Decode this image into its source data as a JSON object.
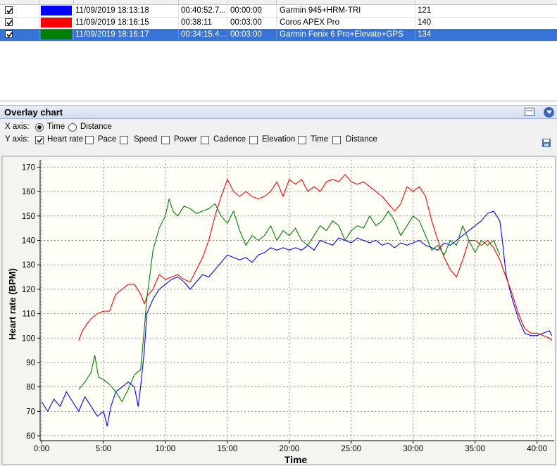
{
  "rows": [
    {
      "checked": true,
      "color": "#0000ff",
      "start": "11/09/2019 18:13:18",
      "duration": "00:40:52.7...",
      "offset": "00:00:00",
      "device": "Garmin 945+HRM-TRI",
      "value": "121",
      "selected": false
    },
    {
      "checked": true,
      "color": "#ff0000",
      "start": "11/09/2019 18:16:15",
      "duration": "00:38:11",
      "offset": "00:03:00",
      "device": "Coros APEX Pro",
      "value": "140",
      "selected": false
    },
    {
      "checked": true,
      "color": "#008000",
      "start": "11/09/2019 18:16:17",
      "duration": "00:34:15.4...",
      "offset": "00:03:00",
      "device": "Garmin Fenix 6 Pro+Elevate+GPS",
      "value": "134",
      "selected": true
    }
  ],
  "panel": {
    "title": "Overlay chart"
  },
  "options": {
    "x_axis_label": "X axis:",
    "x_options": [
      {
        "label": "Time",
        "selected": true
      },
      {
        "label": "Distance",
        "selected": false
      }
    ],
    "y_axis_label": "Y axis:",
    "y_options": [
      {
        "label": "Heart rate",
        "checked": true
      },
      {
        "label": "Pace",
        "checked": false
      },
      {
        "label": "Speed",
        "checked": false
      },
      {
        "label": "Power",
        "checked": false
      },
      {
        "label": "Cadence",
        "checked": false
      },
      {
        "label": "Elevation",
        "checked": false
      },
      {
        "label": "Time",
        "checked": false
      },
      {
        "label": "Distance",
        "checked": false
      }
    ]
  },
  "chart_data": {
    "type": "line",
    "xlabel": "Time",
    "ylabel": "Heart rate (BPM)",
    "xlim": [
      0,
      41.5
    ],
    "ylim": [
      58,
      173
    ],
    "x_ticks": [
      0,
      5,
      10,
      15,
      20,
      25,
      30,
      35,
      40
    ],
    "x_tick_labels": [
      "0:00",
      "5:00",
      "10:00",
      "15:00",
      "20:00",
      "25:00",
      "30:00",
      "35:00",
      "40:00"
    ],
    "y_ticks": [
      60,
      70,
      80,
      90,
      100,
      110,
      120,
      130,
      140,
      150,
      160,
      170
    ],
    "grid": true,
    "series": [
      {
        "color": "#0000ff",
        "points": [
          [
            0,
            74
          ],
          [
            0.5,
            70
          ],
          [
            1,
            75
          ],
          [
            1.5,
            72
          ],
          [
            2,
            78
          ],
          [
            2.5,
            74
          ],
          [
            3,
            70
          ],
          [
            3.5,
            76
          ],
          [
            4,
            72
          ],
          [
            4.5,
            68
          ],
          [
            5,
            70
          ],
          [
            5.3,
            64
          ],
          [
            5.6,
            72
          ],
          [
            6,
            78
          ],
          [
            6.5,
            80
          ],
          [
            7,
            82
          ],
          [
            7.5,
            80
          ],
          [
            7.8,
            72
          ],
          [
            8,
            80
          ],
          [
            8.3,
            95
          ],
          [
            8.5,
            110
          ],
          [
            9,
            116
          ],
          [
            9.5,
            120
          ],
          [
            10,
            122
          ],
          [
            10.5,
            124
          ],
          [
            11,
            125
          ],
          [
            11.5,
            123
          ],
          [
            12,
            120
          ],
          [
            12.5,
            123
          ],
          [
            13,
            126
          ],
          [
            13.5,
            125
          ],
          [
            14,
            128
          ],
          [
            14.5,
            131
          ],
          [
            15,
            134
          ],
          [
            15.5,
            133
          ],
          [
            16,
            132
          ],
          [
            16.5,
            133
          ],
          [
            17,
            131
          ],
          [
            17.5,
            134
          ],
          [
            18,
            135
          ],
          [
            18.5,
            137
          ],
          [
            19,
            136
          ],
          [
            19.5,
            137
          ],
          [
            20,
            136
          ],
          [
            20.5,
            137
          ],
          [
            21,
            136
          ],
          [
            21.5,
            138
          ],
          [
            22,
            136
          ],
          [
            22.5,
            140
          ],
          [
            23,
            139
          ],
          [
            23.5,
            138
          ],
          [
            24,
            141
          ],
          [
            24.5,
            140
          ],
          [
            25,
            139
          ],
          [
            25.5,
            141
          ],
          [
            26,
            140
          ],
          [
            26.5,
            139
          ],
          [
            27,
            140
          ],
          [
            27.5,
            138
          ],
          [
            28,
            139
          ],
          [
            28.5,
            137
          ],
          [
            29,
            139
          ],
          [
            29.5,
            138
          ],
          [
            30,
            139
          ],
          [
            30.5,
            140
          ],
          [
            31,
            138
          ],
          [
            31.5,
            137
          ],
          [
            32,
            136
          ],
          [
            32.5,
            139
          ],
          [
            33,
            138
          ],
          [
            33.5,
            140
          ],
          [
            34,
            142
          ],
          [
            34.5,
            144
          ],
          [
            35,
            146
          ],
          [
            35.5,
            148
          ],
          [
            36,
            151
          ],
          [
            36.5,
            152
          ],
          [
            37,
            148
          ],
          [
            37.2,
            140
          ],
          [
            37.5,
            126
          ],
          [
            38,
            116
          ],
          [
            38.5,
            108
          ],
          [
            39,
            102
          ],
          [
            39.5,
            101
          ],
          [
            40,
            101
          ],
          [
            40.5,
            102
          ],
          [
            41,
            103
          ],
          [
            41.2,
            101
          ]
        ]
      },
      {
        "color": "#ff0000",
        "points": [
          [
            3,
            99
          ],
          [
            3.3,
            103
          ],
          [
            3.7,
            106
          ],
          [
            4,
            108
          ],
          [
            4.5,
            110
          ],
          [
            5,
            111
          ],
          [
            5.5,
            111
          ],
          [
            5.7,
            114
          ],
          [
            6,
            118
          ],
          [
            6.5,
            120
          ],
          [
            7,
            122
          ],
          [
            7.5,
            122
          ],
          [
            8,
            118
          ],
          [
            8.3,
            114
          ],
          [
            8.5,
            117
          ],
          [
            9,
            120
          ],
          [
            9.5,
            126
          ],
          [
            10,
            124
          ],
          [
            10.5,
            125
          ],
          [
            11,
            126
          ],
          [
            11.5,
            124
          ],
          [
            12,
            123
          ],
          [
            12.5,
            128
          ],
          [
            13,
            133
          ],
          [
            13.5,
            140
          ],
          [
            14,
            150
          ],
          [
            14.5,
            158
          ],
          [
            15,
            165
          ],
          [
            15.5,
            160
          ],
          [
            16,
            158
          ],
          [
            16.5,
            160
          ],
          [
            17,
            158
          ],
          [
            17.5,
            157
          ],
          [
            18,
            158
          ],
          [
            18.5,
            160
          ],
          [
            19,
            164
          ],
          [
            19.5,
            158
          ],
          [
            20,
            165
          ],
          [
            20.5,
            163
          ],
          [
            21,
            165
          ],
          [
            21.5,
            160
          ],
          [
            22,
            162
          ],
          [
            22.5,
            160
          ],
          [
            23,
            164
          ],
          [
            23.5,
            165
          ],
          [
            24,
            164
          ],
          [
            24.5,
            167
          ],
          [
            25,
            164
          ],
          [
            25.5,
            163
          ],
          [
            26,
            164
          ],
          [
            26.5,
            162
          ],
          [
            27,
            160
          ],
          [
            27.5,
            158
          ],
          [
            28,
            155
          ],
          [
            28.5,
            152
          ],
          [
            29,
            155
          ],
          [
            29.5,
            162
          ],
          [
            30,
            160
          ],
          [
            30.5,
            162
          ],
          [
            31,
            158
          ],
          [
            31.5,
            148
          ],
          [
            32,
            140
          ],
          [
            32.5,
            133
          ],
          [
            33,
            128
          ],
          [
            33.5,
            125
          ],
          [
            34,
            132
          ],
          [
            34.5,
            140
          ],
          [
            35,
            140
          ],
          [
            35.5,
            138
          ],
          [
            36,
            140
          ],
          [
            36.5,
            137
          ],
          [
            37,
            132
          ],
          [
            37.5,
            125
          ],
          [
            38,
            118
          ],
          [
            38.5,
            110
          ],
          [
            39,
            104
          ],
          [
            39.5,
            102
          ],
          [
            40,
            102
          ],
          [
            40.5,
            101
          ],
          [
            41,
            100
          ],
          [
            41.2,
            99
          ]
        ]
      },
      {
        "color": "#008000",
        "points": [
          [
            3,
            79
          ],
          [
            3.5,
            82
          ],
          [
            4,
            86
          ],
          [
            4.3,
            93
          ],
          [
            4.6,
            84
          ],
          [
            5,
            83
          ],
          [
            5.5,
            81
          ],
          [
            6,
            78
          ],
          [
            6.5,
            74
          ],
          [
            7,
            79
          ],
          [
            7.5,
            85
          ],
          [
            8,
            87
          ],
          [
            8.3,
            104
          ],
          [
            8.5,
            116
          ],
          [
            8.8,
            128
          ],
          [
            9,
            136
          ],
          [
            9.5,
            145
          ],
          [
            10,
            150
          ],
          [
            10.3,
            157
          ],
          [
            10.6,
            152
          ],
          [
            11,
            150
          ],
          [
            11.5,
            154
          ],
          [
            12,
            153
          ],
          [
            12.5,
            151
          ],
          [
            13,
            152
          ],
          [
            13.5,
            153
          ],
          [
            14,
            155
          ],
          [
            14.5,
            150
          ],
          [
            15,
            147
          ],
          [
            15.5,
            152
          ],
          [
            16,
            144
          ],
          [
            16.5,
            138
          ],
          [
            17,
            142
          ],
          [
            17.5,
            140
          ],
          [
            18,
            142
          ],
          [
            18.5,
            146
          ],
          [
            19,
            140
          ],
          [
            19.5,
            144
          ],
          [
            20,
            142
          ],
          [
            20.5,
            145
          ],
          [
            21,
            140
          ],
          [
            21.5,
            138
          ],
          [
            22,
            142
          ],
          [
            22.5,
            146
          ],
          [
            23,
            144
          ],
          [
            23.5,
            148
          ],
          [
            24,
            146
          ],
          [
            24.5,
            140
          ],
          [
            25,
            144
          ],
          [
            25.5,
            146
          ],
          [
            26,
            145
          ],
          [
            26.5,
            150
          ],
          [
            27,
            146
          ],
          [
            27.5,
            148
          ],
          [
            28,
            152
          ],
          [
            28.5,
            148
          ],
          [
            29,
            142
          ],
          [
            29.5,
            146
          ],
          [
            30,
            150
          ],
          [
            30.5,
            148
          ],
          [
            31,
            142
          ],
          [
            31.5,
            136
          ],
          [
            32,
            138
          ],
          [
            32.5,
            134
          ],
          [
            33,
            140
          ],
          [
            33.5,
            138
          ],
          [
            34,
            146
          ],
          [
            34.5,
            140
          ],
          [
            35,
            135
          ],
          [
            35.5,
            140
          ],
          [
            36,
            138
          ],
          [
            36.5,
            140
          ],
          [
            37,
            134
          ]
        ]
      }
    ]
  }
}
